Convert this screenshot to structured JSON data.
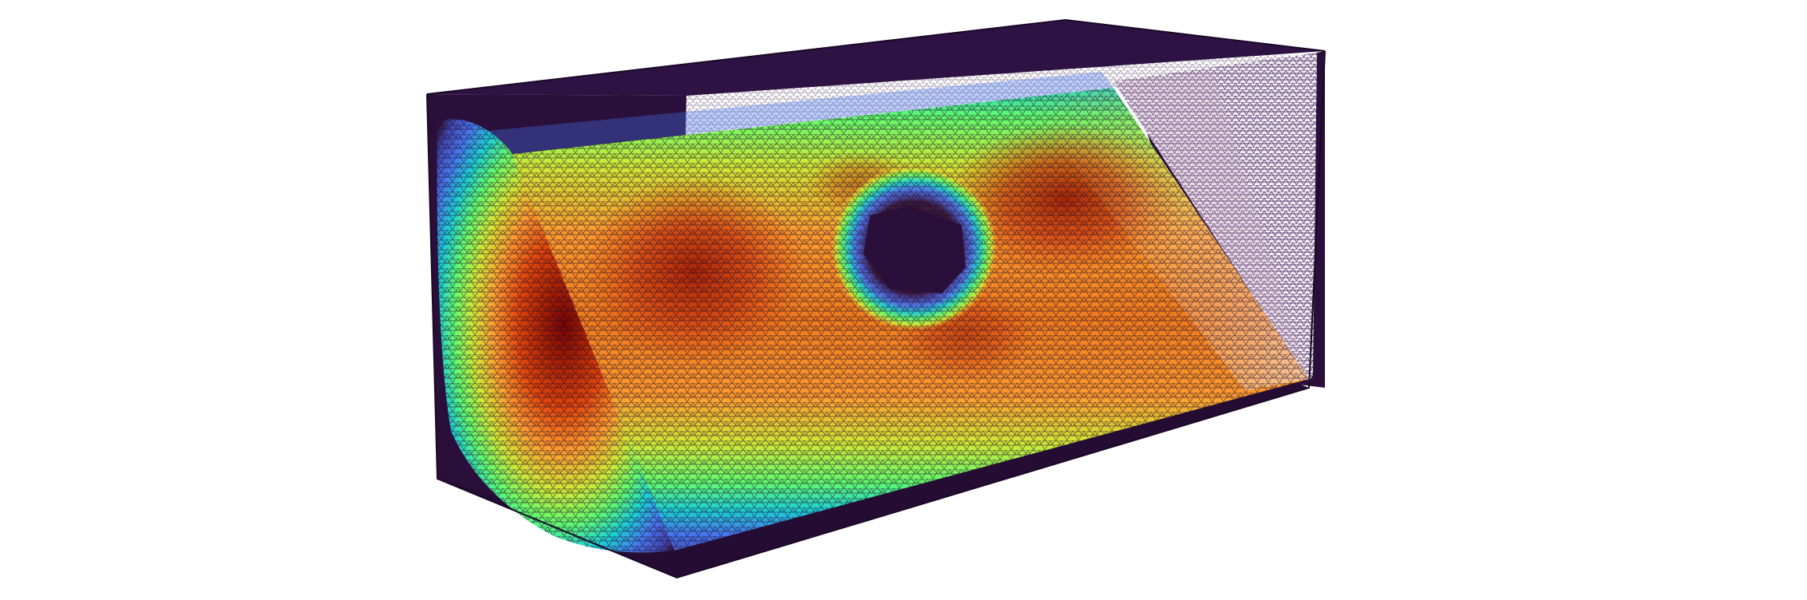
{
  "scene": {
    "subject": "mesh-box-field-visualization",
    "colormap": [
      "#30123b",
      "#4145ab",
      "#4675ed",
      "#1bd0d5",
      "#62fc6b",
      "#d2e935",
      "#fe9b2d",
      "#e4460a",
      "#a41e02",
      "#7a0403"
    ],
    "background_color": "#ffffff",
    "box_color": "#2a0f3a",
    "mesh_line_color": "#1b0b2a"
  }
}
